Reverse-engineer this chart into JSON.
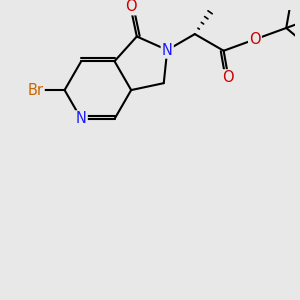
{
  "background_color": "#e8e8e8",
  "atom_colors": {
    "N": "#1a1aff",
    "O": "#cc0000",
    "Br": "#cc6600",
    "C": "#000000"
  },
  "bond_color": "#000000",
  "bond_lw": 1.5,
  "font_size": 10.5,
  "xlim": [
    0,
    10
  ],
  "ylim": [
    0,
    10
  ],
  "figsize": [
    3.0,
    3.0
  ],
  "dpi": 100
}
